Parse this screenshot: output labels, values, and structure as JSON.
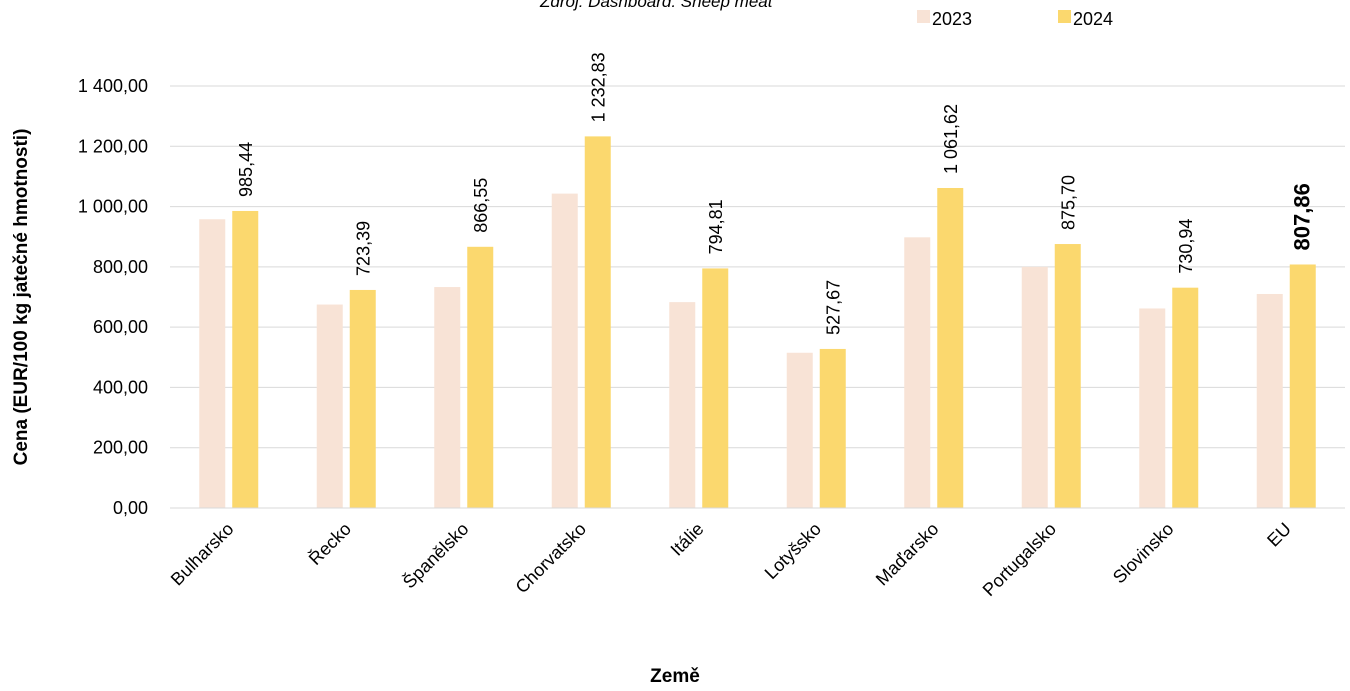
{
  "source_note": "Zdroj: Dashboard: Sheep meat",
  "chart_data": {
    "type": "bar",
    "title": "",
    "xlabel": "Země",
    "ylabel": "Cena (EUR/100 kg jatečné hmotnosti)",
    "ylim": [
      0,
      1400
    ],
    "yticks": [
      "0,00",
      "200,00",
      "400,00",
      "600,00",
      "800,00",
      "1 000,00",
      "1 200,00",
      "1 400,00"
    ],
    "grid": true,
    "legend_position": "top-right",
    "categories": [
      "Bulharsko",
      "Řecko",
      "Španělsko",
      "Chorvatsko",
      "Itálie",
      "Lotyšsko",
      "Maďarsko",
      "Portugalsko",
      "Slovinsko",
      "EU"
    ],
    "series": [
      {
        "name": "2023",
        "color": "#F8E3D6",
        "values": [
          958,
          675,
          733,
          1043,
          683,
          515,
          898,
          800,
          662,
          710
        ],
        "labels": []
      },
      {
        "name": "2024",
        "color": "#FBD86E",
        "values": [
          985.44,
          723.39,
          866.55,
          1232.83,
          794.81,
          527.67,
          1061.62,
          875.7,
          730.94,
          807.86
        ],
        "labels": [
          "985,44",
          "723,39",
          "866,55",
          "1 232,83",
          "794,81",
          "527,67",
          "1 061,62",
          "875,70",
          "730,94",
          "807,86"
        ],
        "bold_label_index": 9
      }
    ]
  }
}
